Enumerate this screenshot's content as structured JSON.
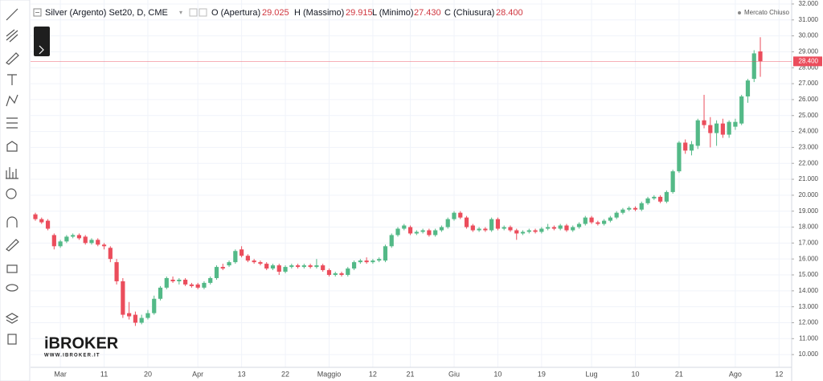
{
  "legend": {
    "title": "Silver (Argento) Set20, D, CME",
    "items": [
      {
        "label": "O (Apertura)",
        "value": "29.025"
      },
      {
        "label": "H (Massimo)",
        "value": "29.915"
      },
      {
        "label": "L (Minimo)",
        "value": "27.430"
      },
      {
        "label": "C (Chiusura)",
        "value": "28.400"
      }
    ],
    "status": "Mercato Chiuso"
  },
  "watermark": {
    "brand": "iBROKER",
    "url": "WWW.IBROKER.IT"
  },
  "chart_data": {
    "type": "candlestick",
    "up_color": "#53b987",
    "down_color": "#eb4d5c",
    "categories": [
      null,
      null,
      null,
      null,
      "Mar",
      null,
      null,
      null,
      null,
      null,
      null,
      "11",
      null,
      null,
      null,
      null,
      null,
      null,
      "20",
      null,
      null,
      null,
      null,
      null,
      null,
      null,
      "Apr",
      null,
      null,
      null,
      null,
      null,
      null,
      "13",
      null,
      null,
      null,
      null,
      null,
      null,
      "22",
      null,
      null,
      null,
      null,
      null,
      null,
      "Maggio",
      null,
      null,
      null,
      null,
      null,
      null,
      "12",
      null,
      null,
      null,
      null,
      null,
      "21",
      null,
      null,
      null,
      null,
      null,
      null,
      "Giu",
      null,
      null,
      null,
      null,
      null,
      null,
      "10",
      null,
      null,
      null,
      null,
      null,
      null,
      "19",
      null,
      null,
      null,
      null,
      null,
      null,
      null,
      "Lug",
      null,
      null,
      null,
      null,
      null,
      null,
      "10",
      null,
      null,
      null,
      null,
      null,
      null,
      "21",
      null,
      null,
      null,
      null,
      null,
      null,
      null,
      null,
      "Ago",
      null,
      null,
      null,
      null,
      null,
      null,
      "12"
    ],
    "open": [
      18.8,
      18.5,
      18.4,
      17.5,
      16.8,
      17.1,
      17.4,
      17.5,
      17.4,
      17.0,
      17.2,
      16.9,
      16.7,
      15.8,
      14.6,
      12.6,
      12.5,
      12.0,
      12.3,
      12.6,
      13.5,
      14.2,
      14.7,
      14.6,
      14.7,
      14.4,
      14.4,
      14.2,
      14.5,
      14.8,
      15.5,
      15.6,
      15.8,
      16.6,
      16.2,
      15.9,
      15.8,
      15.7,
      15.4,
      15.6,
      15.2,
      15.5,
      15.6,
      15.5,
      15.6,
      15.5,
      15.6,
      15.3,
      15.0,
      15.1,
      15.0,
      15.4,
      15.8,
      15.9,
      15.8,
      15.9,
      15.9,
      16.8,
      17.5,
      17.9,
      18.0,
      17.6,
      17.7,
      17.8,
      17.5,
      17.8,
      18.0,
      18.5,
      18.9,
      18.6,
      18.1,
      17.8,
      17.9,
      17.8,
      18.5,
      17.9,
      18.0,
      17.8,
      17.6,
      17.7,
      17.8,
      17.7,
      17.9,
      18.0,
      17.9,
      18.1,
      17.8,
      18.0,
      18.2,
      18.6,
      18.3,
      18.2,
      18.4,
      18.6,
      18.9,
      19.1,
      19.2,
      19.1,
      19.5,
      19.8,
      19.9,
      19.6,
      20.2,
      21.5,
      23.3,
      22.8,
      23.1,
      24.7,
      24.4,
      23.9,
      24.5,
      23.8,
      24.3,
      24.5,
      26.2,
      27.3,
      29.025,
      null,
      null,
      null
    ],
    "high": [
      18.9,
      18.6,
      18.5,
      17.6,
      17.2,
      17.5,
      17.6,
      17.6,
      17.5,
      17.3,
      17.3,
      17.0,
      16.8,
      16.0,
      14.8,
      13.3,
      12.7,
      12.5,
      12.8,
      13.7,
      14.3,
      14.9,
      14.9,
      14.8,
      14.8,
      14.5,
      14.5,
      14.6,
      14.9,
      15.6,
      15.7,
      15.9,
      16.6,
      16.8,
      16.3,
      16.0,
      15.9,
      15.8,
      15.7,
      15.7,
      15.6,
      15.7,
      15.7,
      15.7,
      15.7,
      16.0,
      15.7,
      15.4,
      15.2,
      15.2,
      15.5,
      15.9,
      16.0,
      16.1,
      16.0,
      16.1,
      16.9,
      17.6,
      18.0,
      18.2,
      18.1,
      17.8,
      17.9,
      17.9,
      17.9,
      18.1,
      18.6,
      19.0,
      19.0,
      18.7,
      18.2,
      18.0,
      18.0,
      18.6,
      18.6,
      18.1,
      18.1,
      17.9,
      17.8,
      17.9,
      17.9,
      18.0,
      18.2,
      18.1,
      18.2,
      18.2,
      18.1,
      18.3,
      18.7,
      18.7,
      18.4,
      18.5,
      18.7,
      19.0,
      19.2,
      19.3,
      19.3,
      19.6,
      19.9,
      20.0,
      20.0,
      20.3,
      21.6,
      23.4,
      23.5,
      23.4,
      24.8,
      26.3,
      24.9,
      24.7,
      24.8,
      24.7,
      24.8,
      26.3,
      27.3,
      29.1,
      29.915,
      null,
      null,
      null
    ],
    "low": [
      18.4,
      18.2,
      17.8,
      16.6,
      16.7,
      17.0,
      17.3,
      17.2,
      16.9,
      16.9,
      16.8,
      16.6,
      15.8,
      14.4,
      12.3,
      12.2,
      11.8,
      11.9,
      12.2,
      12.5,
      13.4,
      14.1,
      14.5,
      14.4,
      14.3,
      14.2,
      14.1,
      14.1,
      14.4,
      14.7,
      15.3,
      15.5,
      15.7,
      16.1,
      15.8,
      15.7,
      15.6,
      15.3,
      15.3,
      15.0,
      15.1,
      15.4,
      15.4,
      15.4,
      15.4,
      15.4,
      15.2,
      14.9,
      14.9,
      14.9,
      14.9,
      15.3,
      15.7,
      15.7,
      15.7,
      15.8,
      15.8,
      16.7,
      17.4,
      17.8,
      17.5,
      17.5,
      17.6,
      17.4,
      17.4,
      17.7,
      17.9,
      18.4,
      18.5,
      17.9,
      17.7,
      17.7,
      17.7,
      17.7,
      17.8,
      17.8,
      17.7,
      17.2,
      17.5,
      17.6,
      17.6,
      17.6,
      17.8,
      17.8,
      17.8,
      17.7,
      17.7,
      17.9,
      18.1,
      18.2,
      18.1,
      18.1,
      18.3,
      18.5,
      18.8,
      19.0,
      19.0,
      19.0,
      19.4,
      19.7,
      19.5,
      19.5,
      20.1,
      21.4,
      22.6,
      22.5,
      22.9,
      24.2,
      23.0,
      23.1,
      23.6,
      23.6,
      24.1,
      24.4,
      25.8,
      27.1,
      27.43,
      null,
      null,
      null
    ],
    "close": [
      18.5,
      18.3,
      17.9,
      16.8,
      17.1,
      17.4,
      17.5,
      17.3,
      17.0,
      17.2,
      16.9,
      16.8,
      16.0,
      14.6,
      12.5,
      12.4,
      12.0,
      12.3,
      12.6,
      13.5,
      14.2,
      14.8,
      14.6,
      14.7,
      14.4,
      14.3,
      14.2,
      14.5,
      14.8,
      15.5,
      15.4,
      15.8,
      16.5,
      16.2,
      15.9,
      15.8,
      15.7,
      15.4,
      15.6,
      15.2,
      15.5,
      15.6,
      15.5,
      15.6,
      15.5,
      15.6,
      15.3,
      15.0,
      15.1,
      15.0,
      15.4,
      15.8,
      15.9,
      15.8,
      15.9,
      16.0,
      16.8,
      17.5,
      17.9,
      18.1,
      17.6,
      17.7,
      17.8,
      17.5,
      17.8,
      18.0,
      18.5,
      18.9,
      18.6,
      18.0,
      17.8,
      17.9,
      17.8,
      18.5,
      17.9,
      18.0,
      17.8,
      17.6,
      17.7,
      17.8,
      17.7,
      17.9,
      18.0,
      17.9,
      18.1,
      17.8,
      18.0,
      18.2,
      18.6,
      18.3,
      18.2,
      18.4,
      18.6,
      18.9,
      19.1,
      19.2,
      19.1,
      19.5,
      19.8,
      19.9,
      19.6,
      20.2,
      21.5,
      23.3,
      22.8,
      23.2,
      24.7,
      24.4,
      23.9,
      24.5,
      23.8,
      24.6,
      24.6,
      26.2,
      27.2,
      28.9,
      28.4,
      null,
      null,
      null
    ],
    "ylim": [
      9.2,
      32.25
    ],
    "yticks": [
      {
        "value": 10,
        "label": "10.000"
      },
      {
        "value": 11,
        "label": "11.000"
      },
      {
        "value": 12,
        "label": "12.000"
      },
      {
        "value": 13,
        "label": "13.000"
      },
      {
        "value": 14,
        "label": "14.000"
      },
      {
        "value": 15,
        "label": "15.000"
      },
      {
        "value": 16,
        "label": "16.000"
      },
      {
        "value": 17,
        "label": "17.000"
      },
      {
        "value": 18,
        "label": "18.000"
      },
      {
        "value": 19,
        "label": "19.000"
      },
      {
        "value": 20,
        "label": "20.000"
      },
      {
        "value": 21,
        "label": "21.000"
      },
      {
        "value": 22,
        "label": "22.000"
      },
      {
        "value": 23,
        "label": "23.000"
      },
      {
        "value": 24,
        "label": "24.000"
      },
      {
        "value": 25,
        "label": "25.000"
      },
      {
        "value": 26,
        "label": "26.000"
      },
      {
        "value": 27,
        "label": "27.000"
      },
      {
        "value": 28,
        "label": "28.000"
      },
      {
        "value": 29,
        "label": "29.000"
      },
      {
        "value": 30,
        "label": "30.000"
      },
      {
        "value": 31,
        "label": "31.000"
      },
      {
        "value": 32,
        "label": "32.000"
      }
    ],
    "last_price": {
      "value": 28.4,
      "label": "28.400"
    },
    "grid": true
  }
}
